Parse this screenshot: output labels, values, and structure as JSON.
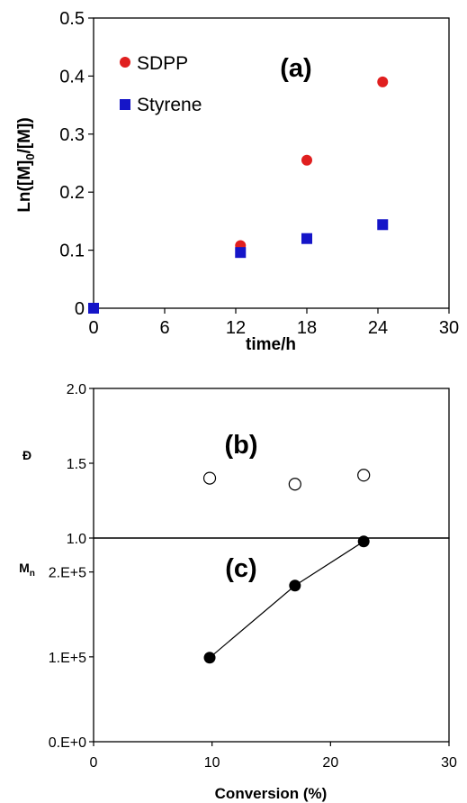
{
  "chart_data": [
    {
      "panel": "(a)",
      "type": "scatter",
      "xlabel": "time/h",
      "ylabel": "Ln([M]0/[M])",
      "xlim": [
        0,
        30
      ],
      "ylim": [
        0,
        0.5
      ],
      "xticks": [
        "0",
        "6",
        "12",
        "18",
        "24",
        "30"
      ],
      "yticks": [
        "0",
        "0.1",
        "0.2",
        "0.3",
        "0.4",
        "0.5"
      ],
      "grid": false,
      "legend_position": "top-left",
      "series": [
        {
          "name": "SDPP",
          "marker": "circle",
          "color": "#e01f1f",
          "points": [
            [
              0,
              0
            ],
            [
              12.4,
              0.108
            ],
            [
              18,
              0.255
            ],
            [
              24.4,
              0.39
            ]
          ]
        },
        {
          "name": "Styrene",
          "marker": "square",
          "color": "#1515c8",
          "points": [
            [
              0,
              0
            ],
            [
              12.4,
              0.096
            ],
            [
              18,
              0.12
            ],
            [
              24.4,
              0.144
            ]
          ]
        }
      ]
    },
    {
      "panel": "(b)",
      "type": "scatter",
      "ylabel": "Đ",
      "xlim": [
        0,
        30
      ],
      "ylim": [
        1.0,
        2.0
      ],
      "yticks": [
        "1.0",
        "1.5",
        "2.0"
      ],
      "series": [
        {
          "marker": "open-circle",
          "color": "#000000",
          "points": [
            [
              9.8,
              1.4
            ],
            [
              17,
              1.36
            ],
            [
              22.8,
              1.42
            ]
          ]
        }
      ]
    },
    {
      "panel": "(c)",
      "type": "line",
      "ylabel": "Mn",
      "xlabel": "Conversion  (%)",
      "xlim": [
        0,
        30
      ],
      "ylim": [
        0,
        240000
      ],
      "xticks": [
        "0",
        "10",
        "20",
        "30"
      ],
      "yticks": [
        "0.E+0",
        "1.E+5",
        "2.E+5"
      ],
      "series": [
        {
          "marker": "filled-circle",
          "color": "#000000",
          "points": [
            [
              9.8,
              99000
            ],
            [
              17,
              184000
            ],
            [
              22.8,
              236000
            ]
          ]
        }
      ]
    }
  ]
}
